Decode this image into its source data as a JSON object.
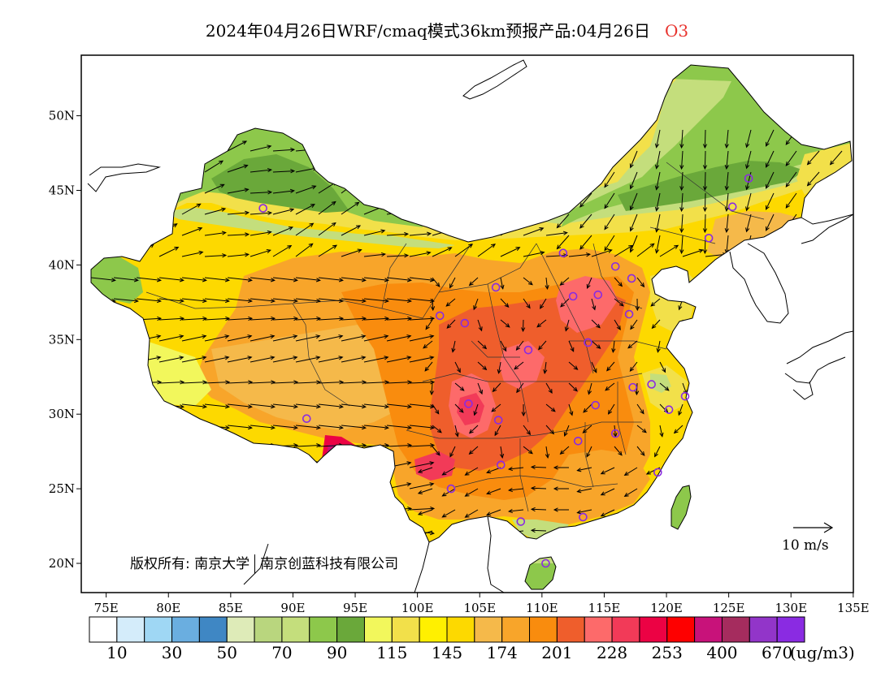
{
  "title": {
    "main": "2024年04月26日WRF/cmaq模式36km预报产品:04月26日",
    "species": "O3"
  },
  "axes": {
    "lat_labels": [
      "50N",
      "45N",
      "40N",
      "35N",
      "30N",
      "25N",
      "20N"
    ],
    "lon_labels": [
      "75E",
      "80E",
      "85E",
      "90E",
      "95E",
      "100E",
      "105E",
      "110E",
      "115E",
      "120E",
      "125E",
      "130E",
      "135E"
    ]
  },
  "copyright": {
    "owner1": "版权所有: 南京大学",
    "owner2": "南京创蓝科技有限公司"
  },
  "wind_legend": {
    "label": "10  m/s"
  },
  "colorbar": {
    "unit": "(ug/m3)",
    "tick_labels": [
      "10",
      "30",
      "50",
      "70",
      "90",
      "115",
      "145",
      "174",
      "201",
      "228",
      "253",
      "400",
      "670"
    ],
    "colors": [
      "#ffffff",
      "#d4ecfa",
      "#9fd7f4",
      "#6aaee0",
      "#3f87c4",
      "#deebb8",
      "#b9d67e",
      "#c4de7c",
      "#8dc84b",
      "#6aa83a",
      "#f2f75c",
      "#f2e04a",
      "#fff000",
      "#fdd900",
      "#f5b94a",
      "#f8a52a",
      "#f98c0e",
      "#ef5e2c",
      "#fd6a6a",
      "#f23a58",
      "#ec0244",
      "#fe0000",
      "#c8127a",
      "#a52c5e",
      "#9235c9",
      "#8a2be2"
    ]
  },
  "stations": [
    {
      "lon": 87.6,
      "lat": 43.8
    },
    {
      "lon": 91.1,
      "lat": 29.7
    },
    {
      "lon": 101.8,
      "lat": 36.6
    },
    {
      "lon": 103.8,
      "lat": 36.1
    },
    {
      "lon": 106.3,
      "lat": 38.5
    },
    {
      "lon": 111.7,
      "lat": 40.8
    },
    {
      "lon": 112.5,
      "lat": 37.9
    },
    {
      "lon": 114.5,
      "lat": 38.0
    },
    {
      "lon": 115.9,
      "lat": 39.9
    },
    {
      "lon": 117.2,
      "lat": 39.1
    },
    {
      "lon": 117.0,
      "lat": 36.7
    },
    {
      "lon": 113.7,
      "lat": 34.8
    },
    {
      "lon": 108.9,
      "lat": 34.3
    },
    {
      "lon": 104.1,
      "lat": 30.7
    },
    {
      "lon": 106.5,
      "lat": 29.6
    },
    {
      "lon": 114.3,
      "lat": 30.6
    },
    {
      "lon": 112.9,
      "lat": 28.2
    },
    {
      "lon": 115.9,
      "lat": 28.7
    },
    {
      "lon": 117.3,
      "lat": 31.8
    },
    {
      "lon": 118.8,
      "lat": 32.0
    },
    {
      "lon": 120.2,
      "lat": 30.3
    },
    {
      "lon": 121.5,
      "lat": 31.2
    },
    {
      "lon": 119.3,
      "lat": 26.1
    },
    {
      "lon": 113.3,
      "lat": 23.1
    },
    {
      "lon": 108.3,
      "lat": 22.8
    },
    {
      "lon": 110.3,
      "lat": 20.0
    },
    {
      "lon": 106.7,
      "lat": 26.6
    },
    {
      "lon": 102.7,
      "lat": 25.0
    },
    {
      "lon": 123.4,
      "lat": 41.8
    },
    {
      "lon": 125.3,
      "lat": 43.9
    },
    {
      "lon": 126.6,
      "lat": 45.8
    }
  ]
}
